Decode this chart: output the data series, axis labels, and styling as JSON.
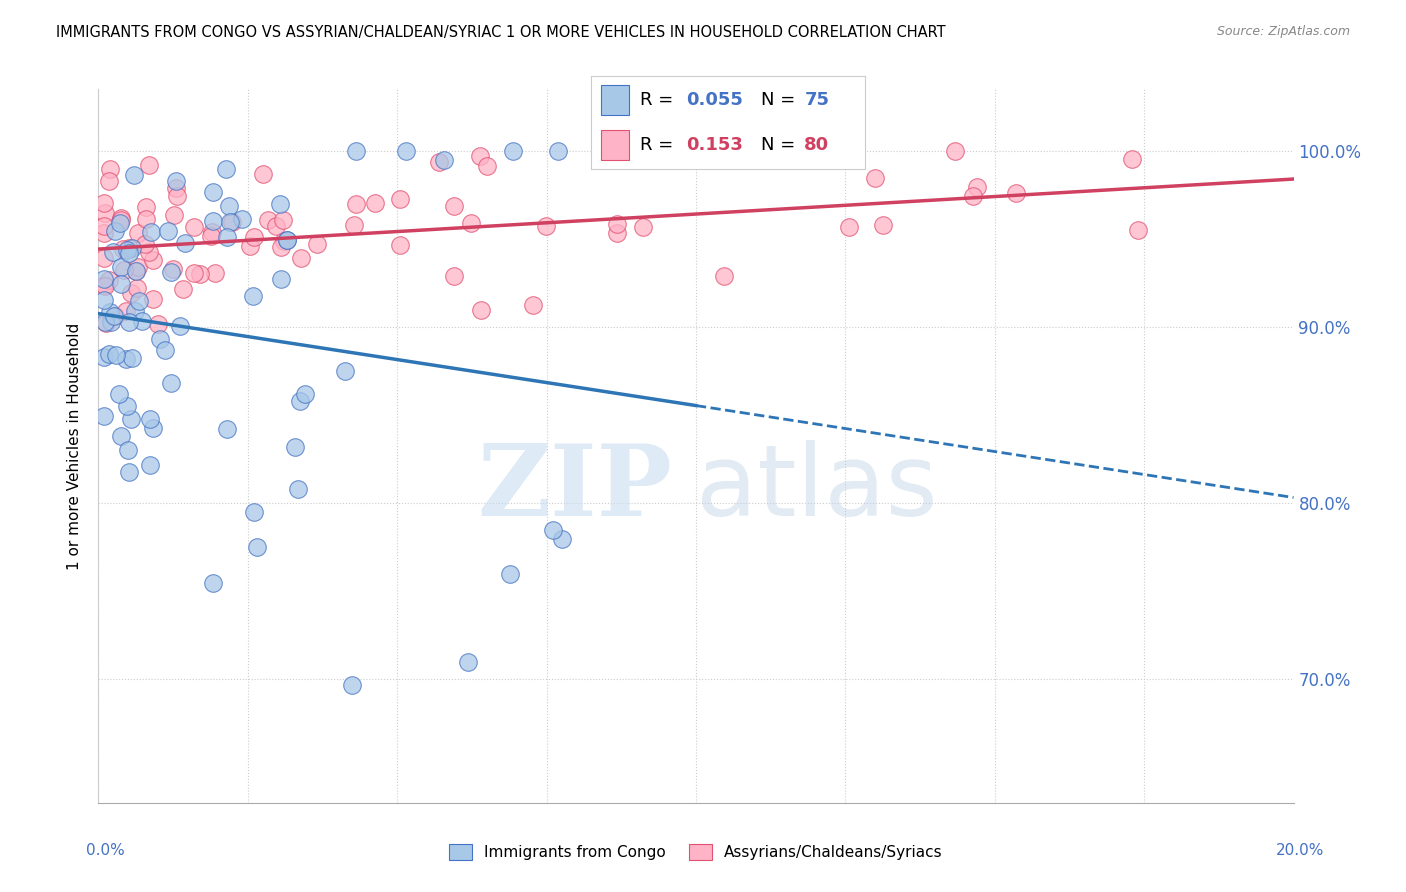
{
  "title": "IMMIGRANTS FROM CONGO VS ASSYRIAN/CHALDEAN/SYRIAC 1 OR MORE VEHICLES IN HOUSEHOLD CORRELATION CHART",
  "source": "Source: ZipAtlas.com",
  "ylabel": "1 or more Vehicles in Household",
  "ytick_vals": [
    0.7,
    0.8,
    0.9,
    1.0
  ],
  "ytick_labels": [
    "70.0%",
    "80.0%",
    "90.0%",
    "100.0%"
  ],
  "xlim": [
    0.0,
    0.2
  ],
  "ylim": [
    0.63,
    1.035
  ],
  "blue_scatter_color": "#A8C8E8",
  "blue_edge_color": "#4472C4",
  "pink_scatter_color": "#FFB3C6",
  "pink_edge_color": "#E05070",
  "blue_line_color": "#2E75B6",
  "pink_line_color": "#D04060",
  "legend_r_blue": "0.055",
  "legend_n_blue": "75",
  "legend_r_pink": "0.153",
  "legend_n_pink": "80",
  "watermark_zip_color": "#C8DCF0",
  "watermark_atlas_color": "#B0CCE8"
}
